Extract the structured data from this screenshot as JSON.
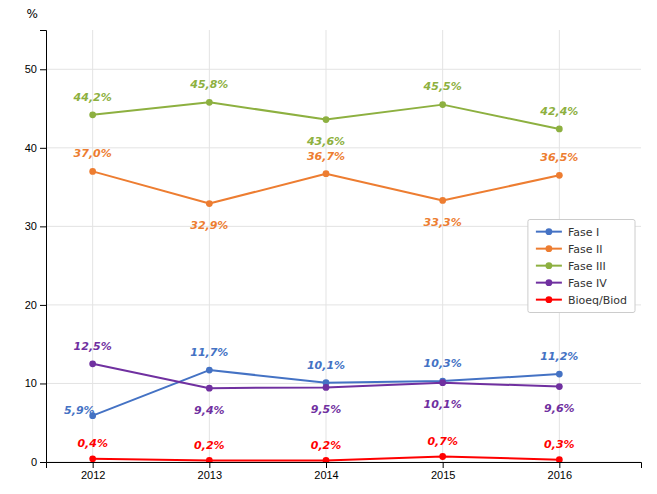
{
  "chart_data": {
    "type": "line",
    "y_label": "%",
    "x": [
      2012,
      2013,
      2014,
      2015,
      2016
    ],
    "xlim": [
      2011.6,
      2016.7
    ],
    "xticks": [
      2012,
      2013,
      2014,
      2015,
      2016
    ],
    "ylim": [
      0,
      55
    ],
    "yticks": [
      0,
      10,
      20,
      30,
      40,
      50
    ],
    "grid": true,
    "legend": "right",
    "marker": "circle",
    "data_labels": true,
    "series": [
      {
        "name": "Fase I",
        "color": "#4472c4",
        "values": [
          5.9,
          11.7,
          10.1,
          10.3,
          11.2
        ],
        "value_labels": [
          "5,9%",
          "11,7%",
          "10,1%",
          "10,3%",
          "11,2%"
        ]
      },
      {
        "name": "Fase II",
        "color": "#ed7d31",
        "values": [
          37.0,
          32.9,
          36.7,
          33.3,
          36.5
        ],
        "value_labels": [
          "37,0%",
          "32,9%",
          "36,7%",
          "33,3%",
          "36,5%"
        ]
      },
      {
        "name": "Fase III",
        "color": "#8db040",
        "values": [
          44.2,
          45.8,
          43.6,
          45.5,
          42.4
        ],
        "value_labels": [
          "44,2%",
          "45,8%",
          "43,6%",
          "45,5%",
          "42,4%"
        ]
      },
      {
        "name": "Fase IV",
        "color": "#7030a0",
        "values": [
          12.5,
          9.4,
          9.5,
          10.1,
          9.6
        ],
        "value_labels": [
          "12,5%",
          "9,4%",
          "9,5%",
          "10,1%",
          "9,6%"
        ]
      },
      {
        "name": "Bioeq/Biod",
        "color": "#ff0000",
        "values": [
          0.4,
          0.2,
          0.2,
          0.7,
          0.3
        ],
        "value_labels": [
          "0,4%",
          "0,2%",
          "0,2%",
          "0,7%",
          "0,3%"
        ]
      }
    ]
  }
}
